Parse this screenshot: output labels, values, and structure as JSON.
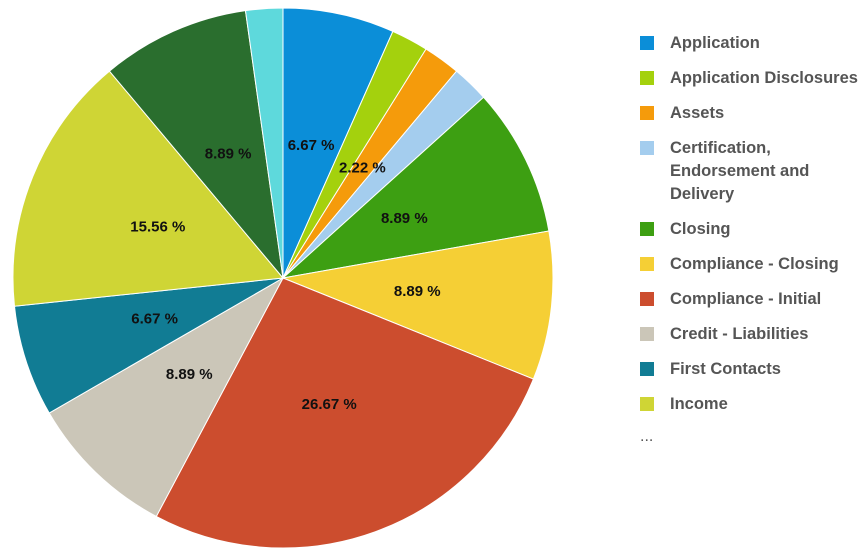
{
  "chart_data": {
    "type": "pie",
    "categories": [
      "Application",
      "Application Disclosures",
      "Assets",
      "Certification, Endorsement and Delivery",
      "Closing",
      "Compliance - Closing",
      "Compliance - Initial",
      "Credit - Liabilities",
      "First Contacts",
      "Income",
      null,
      null
    ],
    "values": [
      6.67,
      2.22,
      2.22,
      2.22,
      8.89,
      8.89,
      26.67,
      8.89,
      6.67,
      15.56,
      8.89,
      2.22
    ],
    "value_labels": [
      "6.67 %",
      null,
      "2.22 %",
      null,
      "8.89 %",
      "8.89 %",
      "26.67 %",
      "8.89 %",
      "6.67 %",
      "15.56 %",
      "8.89 %",
      null
    ],
    "colors": [
      "#0b8ed8",
      "#a4d10d",
      "#f59b0b",
      "#a4cdee",
      "#3d9f12",
      "#f5cf35",
      "#cc4d2e",
      "#cbc6b8",
      "#117c94",
      "#cfd535",
      "#2a6e2e",
      "#5ed9dc"
    ],
    "legend_more": "..."
  }
}
